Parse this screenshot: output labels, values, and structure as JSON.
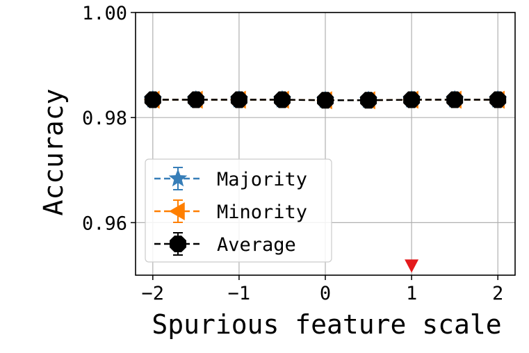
{
  "chart_data": {
    "type": "line",
    "xlabel": "Spurious feature scale",
    "ylabel": "Accuracy",
    "xlim": [
      -2.2,
      2.2
    ],
    "ylim": [
      0.95,
      1.0
    ],
    "x_ticks": [
      -2,
      -1,
      0,
      1,
      2
    ],
    "x_tick_labels": [
      "−2",
      "−1",
      "0",
      "1",
      "2"
    ],
    "y_ticks": [
      0.96,
      0.98,
      1.0
    ],
    "y_tick_labels": [
      "0.96",
      "0.98",
      "1.00"
    ],
    "grid": true,
    "legend_position": "lower-left",
    "x": [
      -2,
      -1.5,
      -1,
      -0.5,
      0,
      0.5,
      1,
      1.5,
      2
    ],
    "series": [
      {
        "name": "Majority",
        "values": [
          0.9834,
          0.9834,
          0.9834,
          0.9834,
          0.9833,
          0.9833,
          0.9834,
          0.9834,
          0.9834
        ],
        "color": "#377eb8",
        "marker": "star",
        "linestyle": "dashed"
      },
      {
        "name": "Minority",
        "values": [
          0.9834,
          0.9834,
          0.9834,
          0.9834,
          0.9833,
          0.9833,
          0.9834,
          0.9834,
          0.9834
        ],
        "color": "#ff7f00",
        "marker": "triangle-left",
        "linestyle": "dashed"
      },
      {
        "name": "Average",
        "values": [
          0.9834,
          0.9834,
          0.9834,
          0.9834,
          0.9833,
          0.9833,
          0.9834,
          0.9834,
          0.9834
        ],
        "color": "#000000",
        "marker": "octagon",
        "linestyle": "dashed"
      }
    ],
    "annotations": [
      {
        "type": "marker",
        "shape": "triangle-down",
        "x": 1,
        "y": 0.9518,
        "color": "#e41a1c"
      }
    ]
  }
}
